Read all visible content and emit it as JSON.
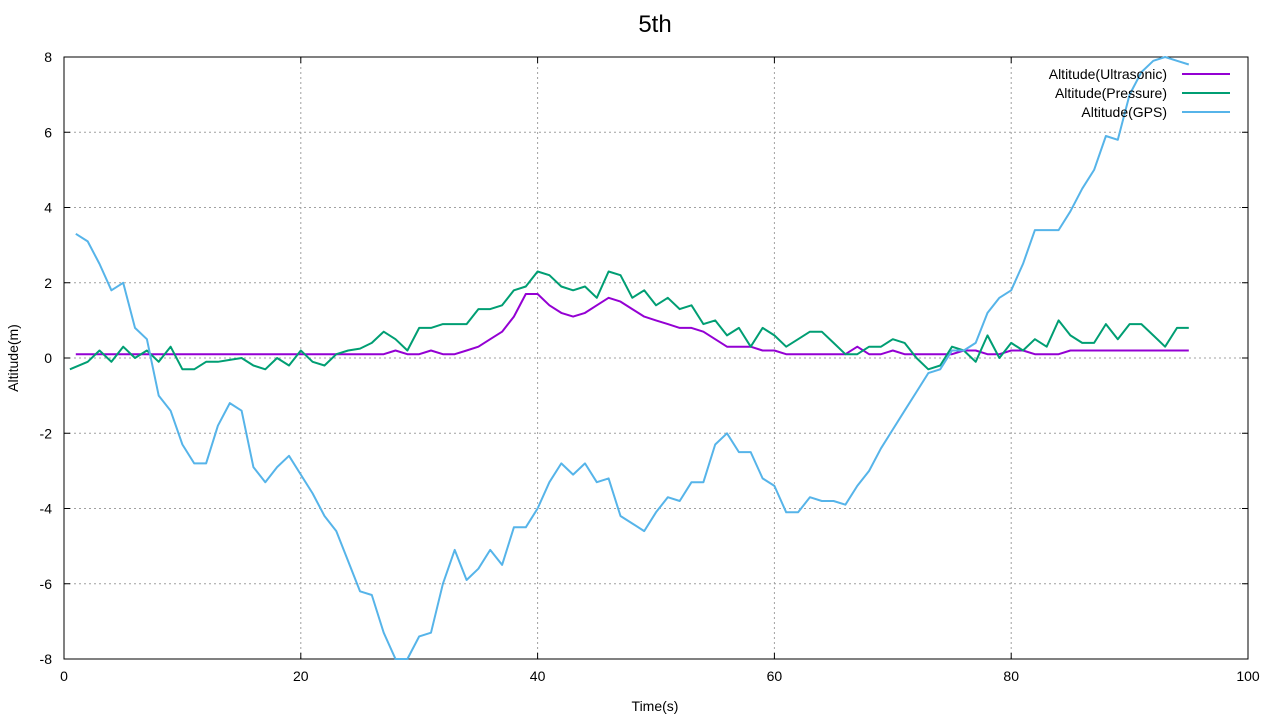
{
  "chart_data": {
    "type": "line",
    "title": "5th",
    "xlabel": "Time(s)",
    "ylabel": "Altitude(m)",
    "xlim": [
      0,
      100
    ],
    "ylim": [
      -8,
      8
    ],
    "xticks": [
      0,
      20,
      40,
      60,
      80,
      100
    ],
    "yticks": [
      -8,
      -6,
      -4,
      -2,
      0,
      2,
      4,
      6,
      8
    ],
    "grid": true,
    "legend_position": "top-right",
    "series": [
      {
        "name": "Altitude(Ultrasonic)",
        "color": "#9400d3",
        "x": [
          1,
          5,
          10,
          15,
          20,
          25,
          27,
          28,
          29,
          30,
          31,
          32,
          33,
          34,
          35,
          36,
          37,
          38,
          39,
          40,
          41,
          42,
          43,
          44,
          45,
          46,
          47,
          48,
          49,
          50,
          51,
          52,
          53,
          54,
          55,
          56,
          57,
          58,
          59,
          60,
          61,
          62,
          63,
          64,
          65,
          66,
          67,
          68,
          69,
          70,
          71,
          72,
          73,
          74,
          75,
          76,
          77,
          78,
          79,
          80,
          81,
          82,
          83,
          84,
          85,
          86,
          87,
          88,
          89,
          90,
          91,
          92,
          93,
          94,
          95
        ],
        "values": [
          0.1,
          0.1,
          0.1,
          0.1,
          0.1,
          0.1,
          0.1,
          0.2,
          0.1,
          0.1,
          0.2,
          0.1,
          0.1,
          0.2,
          0.3,
          0.5,
          0.7,
          1.1,
          1.7,
          1.7,
          1.4,
          1.2,
          1.1,
          1.2,
          1.4,
          1.6,
          1.5,
          1.3,
          1.1,
          1.0,
          0.9,
          0.8,
          0.8,
          0.7,
          0.5,
          0.3,
          0.3,
          0.3,
          0.2,
          0.2,
          0.1,
          0.1,
          0.1,
          0.1,
          0.1,
          0.1,
          0.3,
          0.1,
          0.1,
          0.2,
          0.1,
          0.1,
          0.1,
          0.1,
          0.1,
          0.2,
          0.2,
          0.1,
          0.1,
          0.2,
          0.2,
          0.1,
          0.1,
          0.1,
          0.2,
          0.2,
          0.2,
          0.2,
          0.2,
          0.2,
          0.2,
          0.2,
          0.2,
          0.2,
          0.2
        ]
      },
      {
        "name": "Altitude(Pressure)",
        "color": "#009e73",
        "x": [
          0.5,
          2,
          3,
          4,
          5,
          6,
          7,
          8,
          9,
          10,
          11,
          12,
          13,
          14,
          15,
          16,
          17,
          18,
          19,
          20,
          21,
          22,
          23,
          24,
          25,
          26,
          27,
          28,
          29,
          30,
          31,
          32,
          33,
          34,
          35,
          36,
          37,
          38,
          39,
          40,
          41,
          42,
          43,
          44,
          45,
          46,
          47,
          48,
          49,
          50,
          51,
          52,
          53,
          54,
          55,
          56,
          57,
          58,
          59,
          60,
          61,
          62,
          63,
          64,
          65,
          66,
          67,
          68,
          69,
          70,
          71,
          72,
          73,
          74,
          75,
          76,
          77,
          78,
          79,
          80,
          81,
          82,
          83,
          84,
          85,
          86,
          87,
          88,
          89,
          90,
          91,
          92,
          93,
          94,
          95
        ],
        "values": [
          -0.3,
          -0.1,
          0.2,
          -0.1,
          0.3,
          0.0,
          0.2,
          -0.1,
          0.3,
          -0.3,
          -0.3,
          -0.1,
          -0.1,
          -0.05,
          0.0,
          -0.2,
          -0.3,
          0.0,
          -0.2,
          0.2,
          -0.1,
          -0.2,
          0.1,
          0.2,
          0.25,
          0.4,
          0.7,
          0.5,
          0.2,
          0.8,
          0.8,
          0.9,
          0.9,
          0.9,
          1.3,
          1.3,
          1.4,
          1.8,
          1.9,
          2.3,
          2.2,
          1.9,
          1.8,
          1.9,
          1.6,
          2.3,
          2.2,
          1.6,
          1.8,
          1.4,
          1.6,
          1.3,
          1.4,
          0.9,
          1.0,
          0.6,
          0.8,
          0.3,
          0.8,
          0.6,
          0.3,
          0.5,
          0.7,
          0.7,
          0.4,
          0.1,
          0.1,
          0.3,
          0.3,
          0.5,
          0.4,
          0.0,
          -0.3,
          -0.2,
          0.3,
          0.2,
          -0.1,
          0.6,
          0.0,
          0.4,
          0.2,
          0.5,
          0.3,
          1.0,
          0.6,
          0.4,
          0.4,
          0.9,
          0.5,
          0.9,
          0.9,
          0.6,
          0.3,
          0.8,
          0.8
        ]
      },
      {
        "name": "Altitude(GPS)",
        "color": "#56b4e9",
        "x": [
          1,
          2,
          3,
          4,
          5,
          6,
          7,
          8,
          9,
          10,
          11,
          12,
          13,
          14,
          15,
          16,
          17,
          18,
          19,
          20,
          21,
          22,
          23,
          24,
          25,
          26,
          27,
          28,
          29,
          30,
          31,
          32,
          33,
          34,
          35,
          36,
          37,
          38,
          39,
          40,
          41,
          42,
          43,
          44,
          45,
          46,
          47,
          48,
          49,
          50,
          51,
          52,
          53,
          54,
          55,
          56,
          57,
          58,
          59,
          60,
          61,
          62,
          63,
          64,
          65,
          66,
          67,
          68,
          69,
          70,
          71,
          72,
          73,
          74,
          75,
          76,
          77,
          78,
          79,
          80,
          81,
          82,
          83,
          84,
          85,
          86,
          87,
          88,
          89,
          90,
          91,
          92,
          93,
          94,
          95
        ],
        "values": [
          3.3,
          3.1,
          2.5,
          1.8,
          2.0,
          0.8,
          0.5,
          -1.0,
          -1.4,
          -2.3,
          -2.8,
          -2.8,
          -1.8,
          -1.2,
          -1.4,
          -2.9,
          -3.3,
          -2.9,
          -2.6,
          -3.1,
          -3.6,
          -4.2,
          -4.6,
          -5.4,
          -6.2,
          -6.3,
          -7.3,
          -8.0,
          -8.0,
          -7.4,
          -7.3,
          -6.0,
          -5.1,
          -5.9,
          -5.6,
          -5.1,
          -5.5,
          -4.5,
          -4.5,
          -4.0,
          -3.3,
          -2.8,
          -3.1,
          -2.8,
          -3.3,
          -3.2,
          -4.2,
          -4.4,
          -4.6,
          -4.1,
          -3.7,
          -3.8,
          -3.3,
          -3.3,
          -2.3,
          -2.0,
          -2.5,
          -2.5,
          -3.2,
          -3.4,
          -4.1,
          -4.1,
          -3.7,
          -3.8,
          -3.8,
          -3.9,
          -3.4,
          -3.0,
          -2.4,
          -1.9,
          -1.4,
          -0.9,
          -0.4,
          -0.3,
          0.2,
          0.2,
          0.4,
          1.2,
          1.6,
          1.8,
          2.5,
          3.4,
          3.4,
          3.4,
          3.9,
          4.5,
          5.0,
          5.9,
          5.8,
          7.0,
          7.6,
          7.9,
          8.0,
          7.9,
          7.8
        ]
      }
    ]
  }
}
